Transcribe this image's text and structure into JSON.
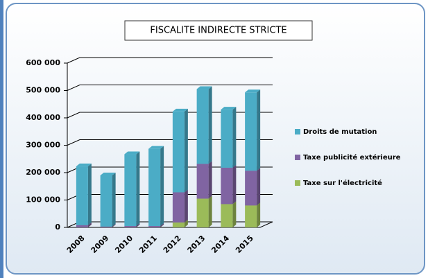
{
  "chart_data": {
    "type": "bar3d_stacked",
    "title": "FISCALITE INDIRECTE STRICTE",
    "categories": [
      "2008",
      "2009",
      "2010",
      "2011",
      "2012",
      "2013",
      "2014",
      "2015"
    ],
    "series": [
      {
        "name": "Droits de mutation",
        "color": "#4bacc6",
        "values": [
          215000,
          187000,
          262000,
          282000,
          295000,
          273000,
          212000,
          286000
        ]
      },
      {
        "name": "Taxe publicité extérieure",
        "color": "#8064a2",
        "values": [
          8000,
          3000,
          5000,
          5000,
          110000,
          127000,
          133000,
          127000
        ]
      },
      {
        "name": "Taxe sur l'électricité",
        "color": "#9bbb59",
        "values": [
          0,
          0,
          0,
          0,
          18000,
          105000,
          85000,
          80000
        ]
      }
    ],
    "ylim": [
      0,
      600000
    ],
    "yticks": [
      0,
      {
        "value": 100000,
        "label": "100 000"
      },
      {
        "value": 200000,
        "label": "200 000"
      },
      {
        "value": 300000,
        "label": "300 000"
      },
      {
        "value": 400000,
        "label": "400 000"
      },
      {
        "value": 500000,
        "label": "500 000"
      },
      {
        "value": 600000,
        "label": "600 000"
      }
    ],
    "grid": true,
    "legend": "right"
  }
}
